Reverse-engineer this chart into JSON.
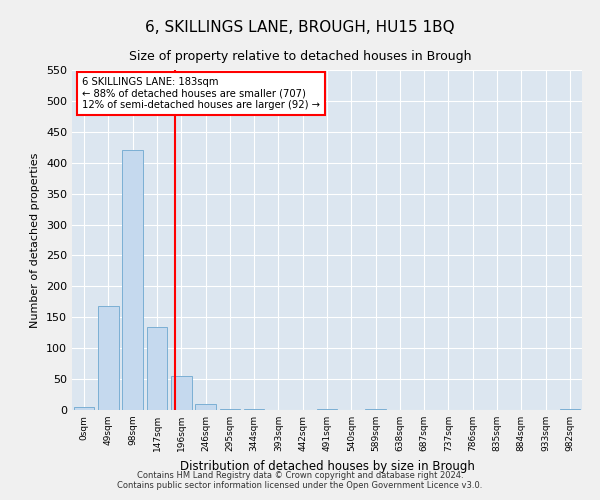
{
  "title": "6, SKILLINGS LANE, BROUGH, HU15 1BQ",
  "subtitle": "Size of property relative to detached houses in Brough",
  "xlabel": "Distribution of detached houses by size in Brough",
  "ylabel": "Number of detached properties",
  "bin_labels": [
    "0sqm",
    "49sqm",
    "98sqm",
    "147sqm",
    "196sqm",
    "246sqm",
    "295sqm",
    "344sqm",
    "393sqm",
    "442sqm",
    "491sqm",
    "540sqm",
    "589sqm",
    "638sqm",
    "687sqm",
    "737sqm",
    "786sqm",
    "835sqm",
    "884sqm",
    "933sqm",
    "982sqm"
  ],
  "bar_heights": [
    5,
    168,
    420,
    135,
    55,
    10,
    1,
    1,
    0,
    0,
    1,
    0,
    1,
    0,
    0,
    0,
    0,
    0,
    0,
    0,
    1
  ],
  "bar_color": "#c5d9ee",
  "bar_edge_color": "#7bafd4",
  "background_color": "#dce6f0",
  "red_line_x": 3.735,
  "annotation_title": "6 SKILLINGS LANE: 183sqm",
  "annotation_line1": "← 88% of detached houses are smaller (707)",
  "annotation_line2": "12% of semi-detached houses are larger (92) →",
  "ylim": [
    0,
    550
  ],
  "yticks": [
    0,
    50,
    100,
    150,
    200,
    250,
    300,
    350,
    400,
    450,
    500,
    550
  ],
  "footer_line1": "Contains HM Land Registry data © Crown copyright and database right 2024.",
  "footer_line2": "Contains public sector information licensed under the Open Government Licence v3.0.",
  "grid_color": "#ffffff",
  "title_fontsize": 11,
  "subtitle_fontsize": 9,
  "fig_bg": "#f0f0f0"
}
